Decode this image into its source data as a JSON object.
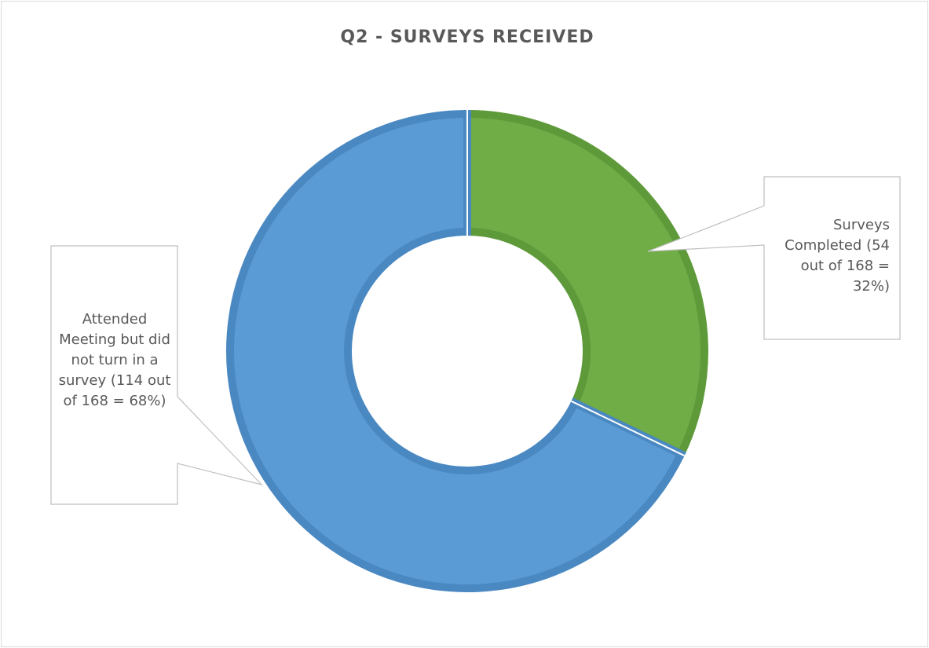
{
  "chart_data": {
    "type": "donut",
    "title": "Q2 - SURVEYS RECEIVED",
    "values": [
      54,
      114
    ],
    "value_labels": [
      "Surveys Completed (54 out of 168 = 32%)",
      "Attended Meeting but did not turn in a survey (114 out of 168 = 68%)"
    ],
    "colors": [
      "#70ad47",
      "#5b9bd5"
    ],
    "edge_colors": [
      "#5e9a3a",
      "#4a88c2"
    ]
  }
}
